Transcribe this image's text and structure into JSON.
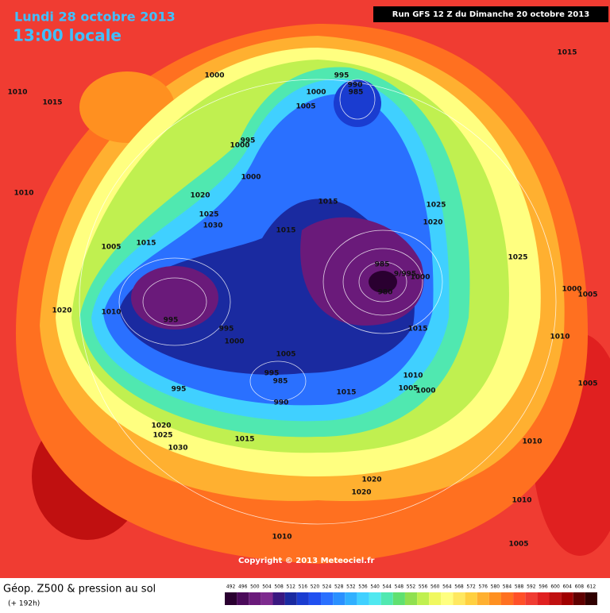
{
  "header": {
    "date": "Lundi 28 octobre 2013",
    "time": "13:00 locale",
    "run": "Run GFS 12 Z du Dimanche 20 octobre 2013"
  },
  "isobar_labels": [
    "1010",
    "1015",
    "1000",
    "995",
    "990",
    "985",
    "1000",
    "1005",
    "1015",
    "1000",
    "995",
    "1000",
    "1010",
    "1020",
    "1025",
    "1030",
    "1015",
    "1025",
    "1020",
    "1025",
    "1015",
    "1015",
    "1005",
    "1010",
    "985",
    "9/995",
    "1000",
    "980",
    "1000",
    "1005",
    "1020",
    "1010",
    "995",
    "995",
    "1000",
    "1005",
    "1015",
    "995",
    "985",
    "990",
    "1015",
    "1005",
    "1000",
    "995",
    "1010",
    "1005",
    "1020",
    "1025",
    "1030",
    "1015",
    "1020",
    "1020",
    "1010",
    "1010",
    "1005",
    "1010"
  ],
  "copyright": "Copyright © 2013 Meteociel.fr",
  "legend": {
    "title": "Géop. Z500 & pression au sol",
    "subtitle": "(+ 192h)"
  },
  "colorbar": {
    "labels": [
      492,
      496,
      500,
      504,
      508,
      512,
      516,
      520,
      524,
      528,
      532,
      536,
      540,
      544,
      548,
      552,
      556,
      560,
      564,
      568,
      572,
      576,
      580,
      584,
      588,
      592,
      596,
      600,
      604,
      608,
      612
    ],
    "colors": [
      "#2a0030",
      "#4b0a5a",
      "#6a1a7a",
      "#7d2a8e",
      "#3a1880",
      "#1a2aa0",
      "#1a3cd0",
      "#2050f0",
      "#2a70ff",
      "#2a90ff",
      "#30b0ff",
      "#40d0ff",
      "#50e8f0",
      "#50e8b0",
      "#60e070",
      "#90e050",
      "#c0f050",
      "#f0f860",
      "#ffff80",
      "#ffe860",
      "#ffd040",
      "#ffb030",
      "#ff9020",
      "#ff7020",
      "#ff5028",
      "#f03c32",
      "#e02020",
      "#c01010",
      "#a00000",
      "#600000",
      "#300000"
    ]
  }
}
